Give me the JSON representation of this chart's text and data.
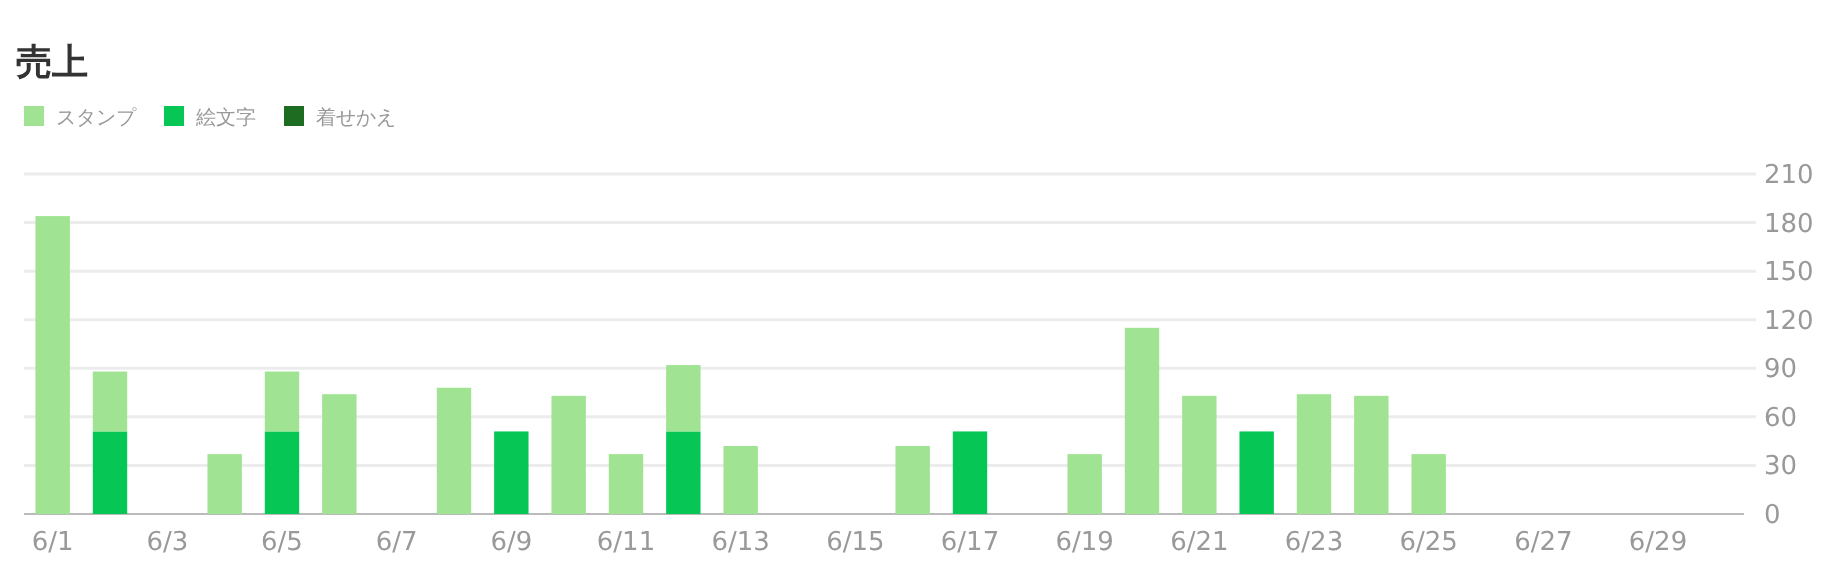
{
  "chart_data": {
    "type": "bar",
    "title": "売上",
    "stacked": true,
    "grid": "y",
    "legend": "top left",
    "categories": [
      "6/1",
      null,
      "6/3",
      null,
      "6/5",
      null,
      "6/7",
      null,
      "6/9",
      null,
      "6/11",
      null,
      "6/13",
      null,
      "6/15",
      null,
      "6/17",
      null,
      "6/19",
      null,
      "6/21",
      null,
      "6/23",
      null,
      "6/25",
      null,
      "6/27",
      null,
      "6/29",
      null
    ],
    "ylim": [
      0,
      210
    ],
    "yticks": [
      0,
      30,
      60,
      90,
      120,
      150,
      180,
      210
    ],
    "series": [
      {
        "name": "絵文字",
        "color": "#06c755",
        "values": [
          0,
          51,
          0,
          0,
          51,
          0,
          0,
          0,
          51,
          0,
          0,
          51,
          0,
          0,
          0,
          0,
          51,
          0,
          0,
          0,
          0,
          51,
          0,
          0,
          0,
          0,
          0,
          0,
          0,
          0
        ]
      },
      {
        "name": "スタンプ",
        "color": "#a0e493",
        "values": [
          184,
          37,
          0,
          37,
          37,
          74,
          0,
          78,
          0,
          73,
          37,
          41,
          42,
          0,
          0,
          42,
          0,
          0,
          37,
          115,
          73,
          0,
          74,
          73,
          37,
          0,
          0,
          0,
          0,
          0
        ]
      },
      {
        "name": "着せかえ",
        "color": "#1e6b22",
        "values": [
          0,
          0,
          0,
          0,
          0,
          0,
          0,
          0,
          0,
          0,
          0,
          0,
          0,
          0,
          0,
          0,
          0,
          0,
          0,
          0,
          0,
          0,
          0,
          0,
          0,
          0,
          0,
          0,
          0,
          0
        ]
      }
    ]
  }
}
